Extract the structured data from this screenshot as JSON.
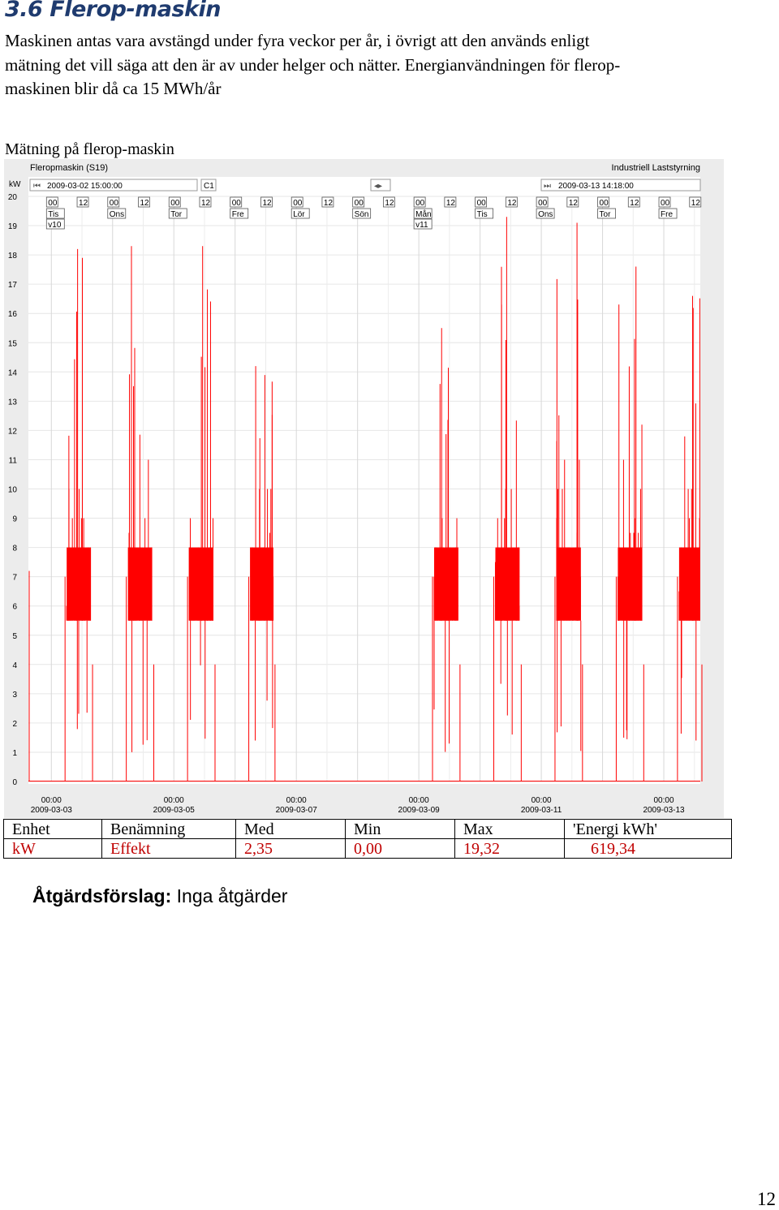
{
  "section": {
    "number": "3.6",
    "title": "Flerop-maskin"
  },
  "paragraph_lines": [
    "Maskinen antas vara avstängd under fyra veckor per år, i övrigt att den används enligt",
    "mätning det vill säga att den är av under helger och nätter. Energianvändningen för flerop-",
    "maskinen blir då ca 15 MWh/år"
  ],
  "figure_caption": "Mätning på flerop-maskin",
  "chart": {
    "title": "Fleropmaskin (S19)",
    "brand": "Industriell Laststyrning",
    "start_time": "2009-03-02 15:00:00",
    "cursor_label": "C1",
    "end_time": "2009-03-13 14:18:00",
    "y_unit": "kW",
    "day_labels": [
      "Tis",
      "Ons",
      "Tor",
      "Fre",
      "Lör",
      "Sön",
      "Mån",
      "Tis",
      "Ons",
      "Tor",
      "Fre"
    ],
    "week_labels": [
      "v10",
      "v11"
    ],
    "hour_labels": [
      "00",
      "12"
    ],
    "x_tick_time": "00:00",
    "x_tick_dates": [
      "2009-03-03",
      "2009-03-05",
      "2009-03-07",
      "2009-03-09",
      "2009-03-11",
      "2009-03-13"
    ],
    "series_color": "#ff0000"
  },
  "chart_data": {
    "type": "line",
    "title": "Fleropmaskin (S19)",
    "ylabel": "kW",
    "ylim": [
      0,
      20
    ],
    "yticks": [
      0,
      1,
      2,
      3,
      4,
      5,
      6,
      7,
      8,
      9,
      10,
      11,
      12,
      13,
      14,
      15,
      16,
      17,
      18,
      19,
      20
    ],
    "x_range": [
      "2009-03-02 15:00:00",
      "2009-03-13 14:18:00"
    ],
    "x_ticks": [
      "2009-03-03 00:00",
      "2009-03-05 00:00",
      "2009-03-07 00:00",
      "2009-03-09 00:00",
      "2009-03-11 00:00",
      "2009-03-13 00:00"
    ],
    "grid": true,
    "series": [
      {
        "color": "#ff0000",
        "typical_on_range_kw": [
          5.5,
          8
        ],
        "max_kw": 19.32,
        "working_days": [
          {
            "start": "2009-03-03 06:00",
            "end": "2009-03-03 15:30",
            "peak": 18.2
          },
          {
            "start": "2009-03-04 06:00",
            "end": "2009-03-04 15:30",
            "peak": 18.3
          },
          {
            "start": "2009-03-05 06:00",
            "end": "2009-03-05 15:30",
            "peak": 18.3
          },
          {
            "start": "2009-03-06 06:00",
            "end": "2009-03-06 15:00",
            "peak": 14.2
          },
          {
            "start": "2009-03-09 06:00",
            "end": "2009-03-09 15:30",
            "peak": 15.5
          },
          {
            "start": "2009-03-10 06:00",
            "end": "2009-03-10 15:30",
            "peak": 19.3
          },
          {
            "start": "2009-03-11 06:00",
            "end": "2009-03-11 15:30",
            "peak": 19.1
          },
          {
            "start": "2009-03-12 06:00",
            "end": "2009-03-12 15:30",
            "peak": 17.6
          },
          {
            "start": "2009-03-13 06:00",
            "end": "2009-03-13 14:18",
            "peak": 16.6
          }
        ]
      }
    ]
  },
  "table": {
    "headers": [
      "Enhet",
      "Benämning",
      "Med",
      "Min",
      "Max",
      "'Energi kWh'"
    ],
    "rows": [
      [
        "kW",
        "Effekt",
        "2,35",
        "0,00",
        "19,32",
        "619,34"
      ]
    ]
  },
  "suggestion": {
    "label": "Åtgärdsförslag:",
    "text": "Inga åtgärder"
  },
  "page_number": "12"
}
